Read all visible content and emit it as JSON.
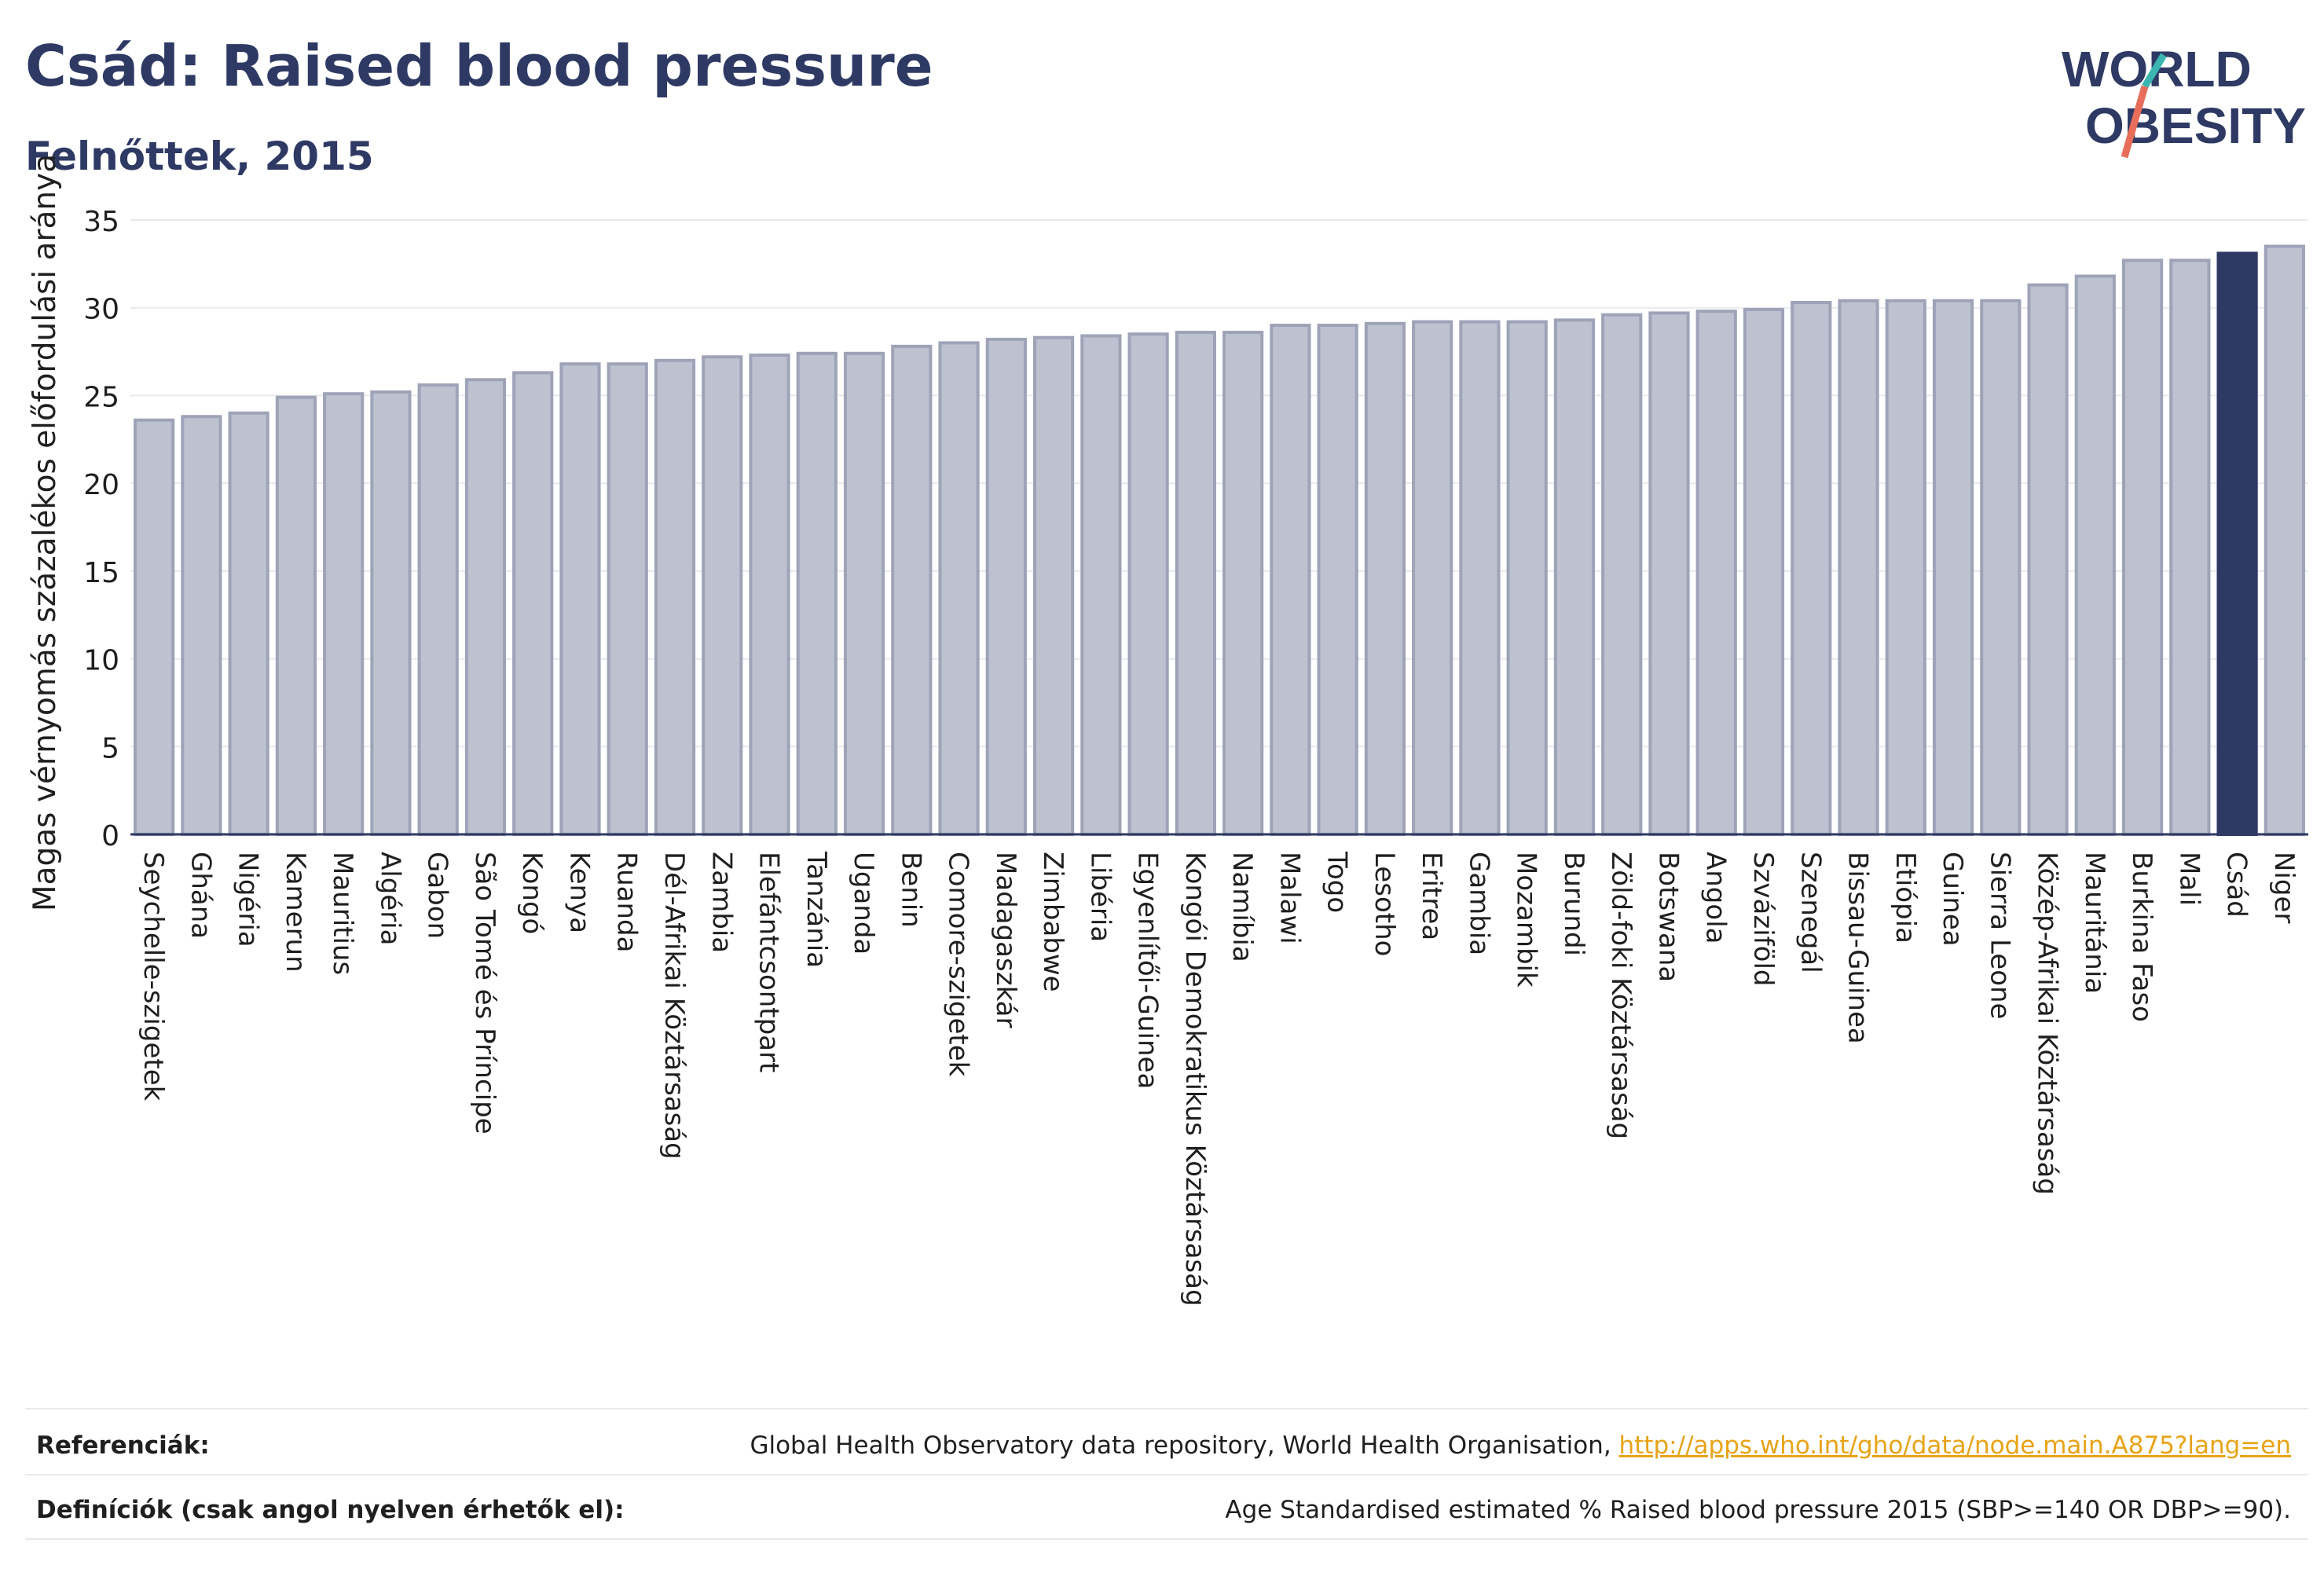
{
  "header": {
    "title": "Csád: Raised blood pressure",
    "subtitle": "Felnőttek, 2015"
  },
  "logo": {
    "line1": "WORLD",
    "line2": "OBESITY"
  },
  "colors": {
    "bar": "#bec1cf",
    "bar_border": "#9ea3b8",
    "highlight": "#2e3a64",
    "text": "#2e3a64",
    "grid": "#e8eaef"
  },
  "chart_data": {
    "type": "bar",
    "ylabel": "Magas vérnyomás százalékos előfordulási aránya",
    "ylim": [
      0,
      35
    ],
    "yticks": [
      0,
      5,
      10,
      15,
      20,
      25,
      30,
      35
    ],
    "grid": true,
    "highlight": "Csád",
    "categories": [
      "Seychelle-szigetek",
      "Ghána",
      "Nigéria",
      "Kamerun",
      "Mauritius",
      "Algéria",
      "Gabon",
      "São Tomé és Príncipe",
      "Kongó",
      "Kenya",
      "Ruanda",
      "Dél-Afrikai Köztársaság",
      "Zambia",
      "Elefántcsontpart",
      "Tanzánia",
      "Uganda",
      "Benin",
      "Comore-szigetek",
      "Madagaszkár",
      "Zimbabwe",
      "Libéria",
      "Egyenlítői-Guinea",
      "Kongói Demokratikus Köztársaság",
      "Namíbia",
      "Malawi",
      "Togo",
      "Lesotho",
      "Eritrea",
      "Gambia",
      "Mozambik",
      "Burundi",
      "Zöld-foki Köztársaság",
      "Botswana",
      "Angola",
      "Szváziföld",
      "Szenegál",
      "Bissau-Guinea",
      "Etiópia",
      "Guinea",
      "Sierra Leone",
      "Közép-Afrikai Köztársaság",
      "Mauritánia",
      "Burkina Faso",
      "Mali",
      "Csád",
      "Niger"
    ],
    "values": [
      23.6,
      23.8,
      24.0,
      24.9,
      25.1,
      25.2,
      25.6,
      25.9,
      26.3,
      26.8,
      26.8,
      27.0,
      27.2,
      27.3,
      27.4,
      27.4,
      27.8,
      28.0,
      28.2,
      28.3,
      28.4,
      28.5,
      28.6,
      28.6,
      29.0,
      29.0,
      29.1,
      29.2,
      29.2,
      29.2,
      29.3,
      29.6,
      29.7,
      29.8,
      29.9,
      30.3,
      30.4,
      30.4,
      30.4,
      30.4,
      31.3,
      31.8,
      32.7,
      32.7,
      33.1,
      33.5
    ]
  },
  "references": {
    "ref_label": "Referenciák:",
    "ref_text": "Global Health Observatory data repository, World Health Organisation,",
    "ref_link": "http://apps.who.int/gho/data/node.main.A875?lang=en",
    "def_label": "Definíciók (csak angol nyelven érhetők el):",
    "def_text": "Age Standardised estimated % Raised blood pressure 2015 (SBP>=140 OR DBP>=90)."
  }
}
